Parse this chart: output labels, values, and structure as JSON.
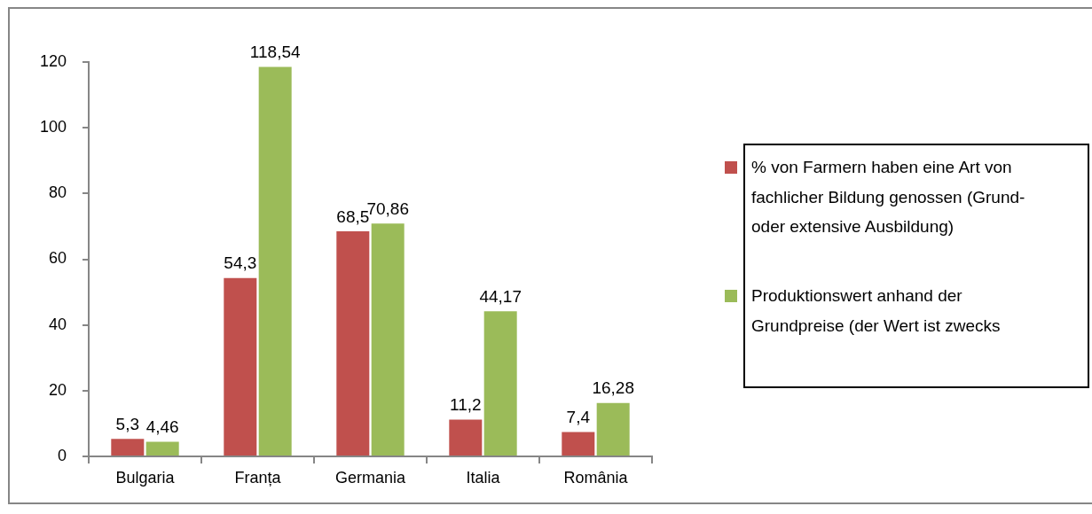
{
  "chart_data": {
    "type": "bar",
    "categories": [
      "Bulgaria",
      "Franța",
      "Germania",
      "Italia",
      "România"
    ],
    "series": [
      {
        "name": "% von Farmern haben eine Art von fachlicher Bildung genossen (Grund- oder extensive Ausbildung)",
        "color": "#c0504d",
        "values": [
          5.3,
          54.3,
          68.5,
          11.2,
          7.4
        ],
        "value_labels": [
          "5,3",
          "54,3",
          "68,5",
          "11,2",
          "7,4"
        ]
      },
      {
        "name": "Produktionswert anhand der Grundpreise (der Wert ist zwecks",
        "color": "#9bbb59",
        "values": [
          4.46,
          118.54,
          70.86,
          44.17,
          16.28
        ],
        "value_labels": [
          "4,46",
          "118,54",
          "70,86",
          "44,17",
          "16,28"
        ]
      }
    ],
    "ylim": [
      0,
      120
    ],
    "yticks": [
      0,
      20,
      40,
      60,
      80,
      100,
      120
    ],
    "legend": "right"
  }
}
